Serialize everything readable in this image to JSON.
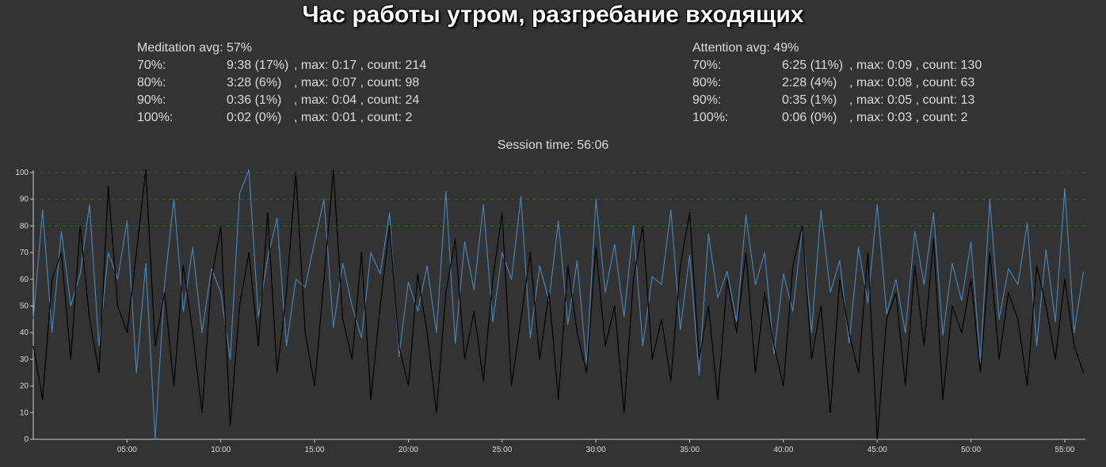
{
  "title": "Час работы утром, разгребание входящих",
  "meditation": {
    "avg_label": "Meditation avg: 57%",
    "rows": [
      {
        "level": "70%:",
        "duration": "9:38 (17%)",
        "rest": ", max: 0:17 , count: 214"
      },
      {
        "level": "80%:",
        "duration": "3:28 (6%)",
        "rest": ", max: 0:07 , count: 98"
      },
      {
        "level": "90%:",
        "duration": "0:36 (1%)",
        "rest": ", max: 0:04 , count: 24"
      },
      {
        "level": "100%:",
        "duration": "0:02 (0%)",
        "rest": ", max: 0:01 , count: 2"
      }
    ]
  },
  "attention": {
    "avg_label": "Attention avg: 49%",
    "rows": [
      {
        "level": "70%:",
        "duration": "6:25 (11%)",
        "rest": ", max: 0:09 , count: 130"
      },
      {
        "level": "80%:",
        "duration": "2:28 (4%)",
        "rest": ", max: 0:08 , count: 63"
      },
      {
        "level": "90%:",
        "duration": "0:35 (1%)",
        "rest": ", max: 0:05 , count: 13"
      },
      {
        "level": "100%:",
        "duration": "0:06 (0%)",
        "rest": ", max: 0:03 , count: 2"
      }
    ]
  },
  "session_time": "Session time: 56:06",
  "chart_data": {
    "type": "line",
    "x_unit": "minutes",
    "xlim": [
      0,
      56.1
    ],
    "ylim": [
      0,
      100
    ],
    "x_ticks": [
      {
        "value": 5,
        "label": "05:00"
      },
      {
        "value": 10,
        "label": "10:00"
      },
      {
        "value": 15,
        "label": "15:00"
      },
      {
        "value": 20,
        "label": "20:00"
      },
      {
        "value": 25,
        "label": "25:00"
      },
      {
        "value": 30,
        "label": "30:00"
      },
      {
        "value": 35,
        "label": "35:00"
      },
      {
        "value": 40,
        "label": "40:00"
      },
      {
        "value": 45,
        "label": "45:00"
      },
      {
        "value": 50,
        "label": "50:00"
      },
      {
        "value": 55,
        "label": "55:00"
      }
    ],
    "y_ticks": [
      0,
      10,
      20,
      30,
      40,
      50,
      60,
      70,
      80,
      90,
      100
    ],
    "threshold_lines": [
      80,
      90,
      100
    ],
    "colors": {
      "meditation": "#4682b4",
      "attention": "#000000",
      "threshold": "#1e6b1e",
      "axis": "#cccccc"
    },
    "series": [
      {
        "id": "meditation",
        "color": "#4682b4",
        "x": [
          0.0,
          0.5,
          1.0,
          1.5,
          2.0,
          2.5,
          3.0,
          3.5,
          4.0,
          4.5,
          5.0,
          5.5,
          6.0,
          6.5,
          7.0,
          7.5,
          8.0,
          8.5,
          9.0,
          9.5,
          10.0,
          10.5,
          11.0,
          11.5,
          12.0,
          12.5,
          13.0,
          13.5,
          14.0,
          14.5,
          15.0,
          15.5,
          16.0,
          16.5,
          17.0,
          17.5,
          18.0,
          18.5,
          19.0,
          19.5,
          20.0,
          20.5,
          21.0,
          21.5,
          22.0,
          22.5,
          23.0,
          23.5,
          24.0,
          24.5,
          25.0,
          25.5,
          26.0,
          26.5,
          27.0,
          27.5,
          28.0,
          28.5,
          29.0,
          29.5,
          30.0,
          30.5,
          31.0,
          31.5,
          32.0,
          32.5,
          33.0,
          33.5,
          34.0,
          34.5,
          35.0,
          35.5,
          36.0,
          36.5,
          37.0,
          37.5,
          38.0,
          38.5,
          39.0,
          39.5,
          40.0,
          40.5,
          41.0,
          41.5,
          42.0,
          42.5,
          43.0,
          43.5,
          44.0,
          44.5,
          45.0,
          45.5,
          46.0,
          46.5,
          47.0,
          47.5,
          48.0,
          48.5,
          49.0,
          49.5,
          50.0,
          50.5,
          51.0,
          51.5,
          52.0,
          52.5,
          53.0,
          53.5,
          54.0,
          54.5,
          55.0,
          55.5,
          56.0
        ],
        "values": [
          45,
          86,
          40,
          78,
          50,
          62,
          88,
          35,
          70,
          60,
          82,
          25,
          66,
          0,
          58,
          90,
          48,
          72,
          40,
          64,
          55,
          30,
          92,
          101,
          46,
          68,
          83,
          35,
          60,
          57,
          74,
          90,
          42,
          66,
          50,
          38,
          70,
          62,
          85,
          31,
          59,
          48,
          65,
          40,
          93,
          36,
          74,
          56,
          88,
          44,
          70,
          60,
          91,
          38,
          65,
          52,
          82,
          43,
          67,
          28,
          90,
          55,
          73,
          46,
          80,
          35,
          61,
          58,
          86,
          41,
          69,
          24,
          77,
          53,
          63,
          44,
          84,
          58,
          70,
          32,
          62,
          48,
          79,
          40,
          86,
          55,
          67,
          36,
          72,
          51,
          88,
          47,
          60,
          40,
          78,
          58,
          85,
          39,
          66,
          52,
          74,
          29,
          90,
          45,
          64,
          58,
          81,
          35,
          71,
          44,
          94,
          40,
          63
        ]
      },
      {
        "id": "attention",
        "color": "#000000",
        "x": [
          0.0,
          0.5,
          1.0,
          1.5,
          2.0,
          2.5,
          3.0,
          3.5,
          4.0,
          4.5,
          5.0,
          5.5,
          6.0,
          6.5,
          7.0,
          7.5,
          8.0,
          8.5,
          9.0,
          9.5,
          10.0,
          10.5,
          11.0,
          11.5,
          12.0,
          12.5,
          13.0,
          13.5,
          14.0,
          14.5,
          15.0,
          15.5,
          16.0,
          16.5,
          17.0,
          17.5,
          18.0,
          18.5,
          19.0,
          19.5,
          20.0,
          20.5,
          21.0,
          21.5,
          22.0,
          22.5,
          23.0,
          23.5,
          24.0,
          24.5,
          25.0,
          25.5,
          26.0,
          26.5,
          27.0,
          27.5,
          28.0,
          28.5,
          29.0,
          29.5,
          30.0,
          30.5,
          31.0,
          31.5,
          32.0,
          32.5,
          33.0,
          33.5,
          34.0,
          34.5,
          35.0,
          35.5,
          36.0,
          36.5,
          37.0,
          37.5,
          38.0,
          38.5,
          39.0,
          39.5,
          40.0,
          40.5,
          41.0,
          41.5,
          42.0,
          42.5,
          43.0,
          43.5,
          44.0,
          44.5,
          45.0,
          45.5,
          46.0,
          46.5,
          47.0,
          47.5,
          48.0,
          48.5,
          49.0,
          49.5,
          50.0,
          50.5,
          51.0,
          51.5,
          52.0,
          52.5,
          53.0,
          53.5,
          54.0,
          54.5,
          55.0,
          55.5,
          56.0
        ],
        "values": [
          35,
          15,
          60,
          70,
          30,
          80,
          45,
          25,
          95,
          50,
          40,
          70,
          101,
          35,
          55,
          20,
          65,
          40,
          10,
          60,
          80,
          5,
          50,
          70,
          35,
          85,
          25,
          55,
          100,
          40,
          20,
          60,
          101,
          45,
          30,
          70,
          15,
          50,
          80,
          35,
          20,
          62,
          40,
          10,
          55,
          75,
          30,
          48,
          22,
          60,
          85,
          20,
          45,
          70,
          30,
          55,
          15,
          65,
          40,
          25,
          72,
          35,
          50,
          10,
          60,
          80,
          30,
          45,
          22,
          65,
          85,
          30,
          50,
          15,
          60,
          40,
          70,
          25,
          55,
          35,
          20,
          65,
          80,
          30,
          50,
          10,
          60,
          40,
          25,
          70,
          0,
          45,
          55,
          20,
          65,
          35,
          75,
          15,
          50,
          40,
          60,
          25,
          70,
          30,
          55,
          45,
          20,
          65,
          50,
          30,
          60,
          35,
          25
        ]
      }
    ]
  }
}
